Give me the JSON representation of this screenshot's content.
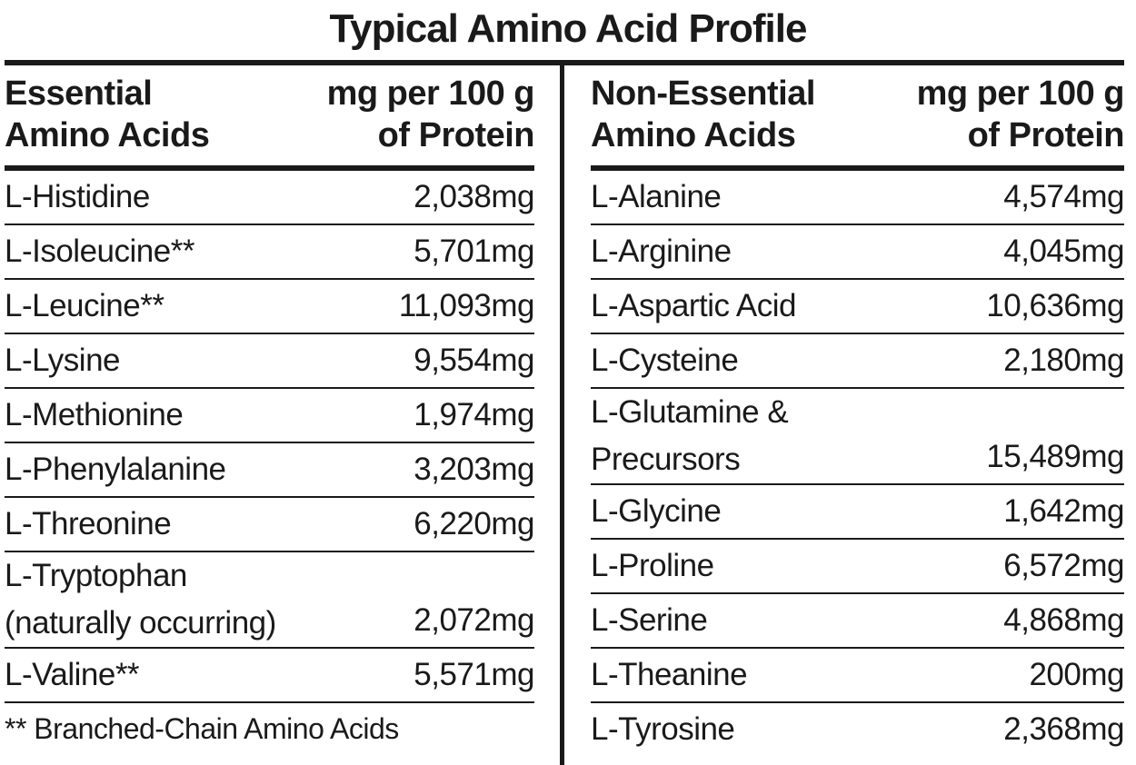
{
  "title": "Typical Amino Acid Profile",
  "essential": {
    "header": {
      "name": [
        "Essential",
        "Amino Acids"
      ],
      "amount": [
        "mg per 100 g",
        "of Protein"
      ]
    },
    "rows": [
      {
        "name": [
          "L-Histidine"
        ],
        "amount": "2,038mg"
      },
      {
        "name": [
          "L-Isoleucine**"
        ],
        "amount": "5,701mg"
      },
      {
        "name": [
          "L-Leucine**"
        ],
        "amount": "11,093mg"
      },
      {
        "name": [
          "L-Lysine"
        ],
        "amount": "9,554mg"
      },
      {
        "name": [
          "L-Methionine"
        ],
        "amount": "1,974mg"
      },
      {
        "name": [
          "L-Phenylalanine"
        ],
        "amount": "3,203mg"
      },
      {
        "name": [
          "L-Threonine"
        ],
        "amount": "6,220mg"
      },
      {
        "name": [
          "L-Tryptophan",
          "(naturally occurring)"
        ],
        "amount": "2,072mg"
      },
      {
        "name": [
          "L-Valine**"
        ],
        "amount": "5,571mg"
      }
    ],
    "footnote": "** Branched-Chain Amino Acids"
  },
  "non_essential": {
    "header": {
      "name": [
        "Non-Essential",
        "Amino Acids"
      ],
      "amount": [
        "mg per 100 g",
        "of Protein"
      ]
    },
    "rows": [
      {
        "name": [
          "L-Alanine"
        ],
        "amount": "4,574mg"
      },
      {
        "name": [
          "L-Arginine"
        ],
        "amount": "4,045mg"
      },
      {
        "name": [
          "L-Aspartic Acid"
        ],
        "amount": "10,636mg"
      },
      {
        "name": [
          "L-Cysteine"
        ],
        "amount": "2,180mg"
      },
      {
        "name": [
          "L-Glutamine &",
          "Precursors"
        ],
        "amount": "15,489mg"
      },
      {
        "name": [
          "L-Glycine"
        ],
        "amount": "1,642mg"
      },
      {
        "name": [
          "L-Proline"
        ],
        "amount": "6,572mg"
      },
      {
        "name": [
          "L-Serine"
        ],
        "amount": "4,868mg"
      },
      {
        "name": [
          "L-Theanine"
        ],
        "amount": "200mg"
      },
      {
        "name": [
          "L-Tyrosine"
        ],
        "amount": "2,368mg"
      }
    ]
  }
}
